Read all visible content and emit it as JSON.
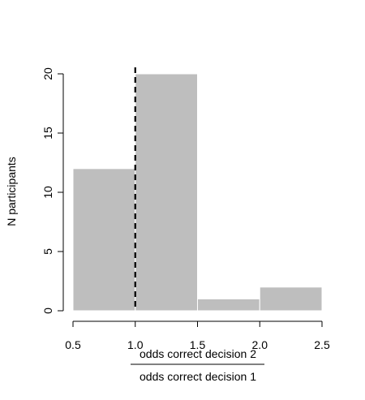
{
  "chart_data": {
    "type": "bar",
    "subtype": "histogram",
    "bins": [
      {
        "x0": 0.5,
        "x1": 1.0,
        "count": 12
      },
      {
        "x0": 1.0,
        "x1": 1.5,
        "count": 20
      },
      {
        "x0": 1.5,
        "x1": 2.0,
        "count": 1
      },
      {
        "x0": 2.0,
        "x1": 2.5,
        "count": 2
      }
    ],
    "xlim": [
      0.5,
      2.5
    ],
    "ylim": [
      0,
      20
    ],
    "x_ticks": [
      "0.5",
      "1.0",
      "1.5",
      "2.0",
      "2.5"
    ],
    "y_ticks": [
      "0",
      "5",
      "10",
      "15",
      "20"
    ],
    "ylabel": "N participants",
    "xlabel_numerator": "odds correct decision 2",
    "xlabel_denominator": "odds correct decision 1",
    "reference_line": {
      "x": 1.0,
      "style": "dashed"
    },
    "grid": false,
    "bar_color": "#bebebe"
  }
}
